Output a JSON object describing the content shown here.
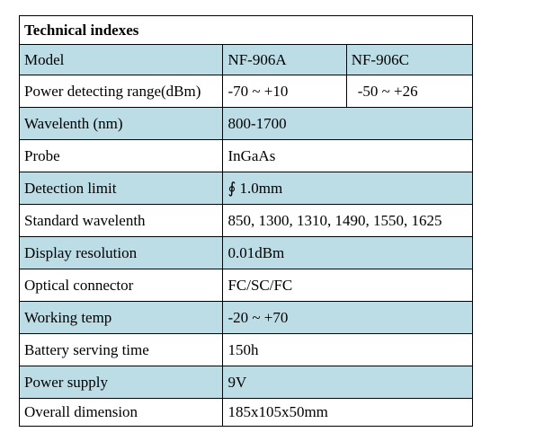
{
  "table": {
    "title": "Technical indexes",
    "header": {
      "label": "Model",
      "models": [
        "NF-906A",
        "NF-906C"
      ]
    },
    "power_range": {
      "label": "Power detecting range(dBm)",
      "values": [
        "-70 ~ +10",
        "-50 ~ +26"
      ]
    },
    "rows": [
      {
        "label": "Wavelenth (nm)",
        "value": "800-1700"
      },
      {
        "label": "Probe",
        "value": "InGaAs"
      },
      {
        "label": "Detection limit",
        "value": "∮ 1.0mm"
      },
      {
        "label": "Standard wavelenth",
        "value": "850, 1300, 1310, 1490, 1550, 1625"
      },
      {
        "label": "Display resolution",
        "value": "0.01dBm"
      },
      {
        "label": "Optical connector",
        "value": "FC/SC/FC"
      },
      {
        "label": "Working temp",
        "value": "-20 ~ +70"
      },
      {
        "label": "Battery serving time",
        "value": "150h"
      },
      {
        "label": "Power supply",
        "value": "9V"
      },
      {
        "label": "Overall dimension",
        "value": "185x105x50mm"
      }
    ]
  },
  "colors": {
    "shaded_row": "#bcdde6",
    "border": "#000000"
  }
}
